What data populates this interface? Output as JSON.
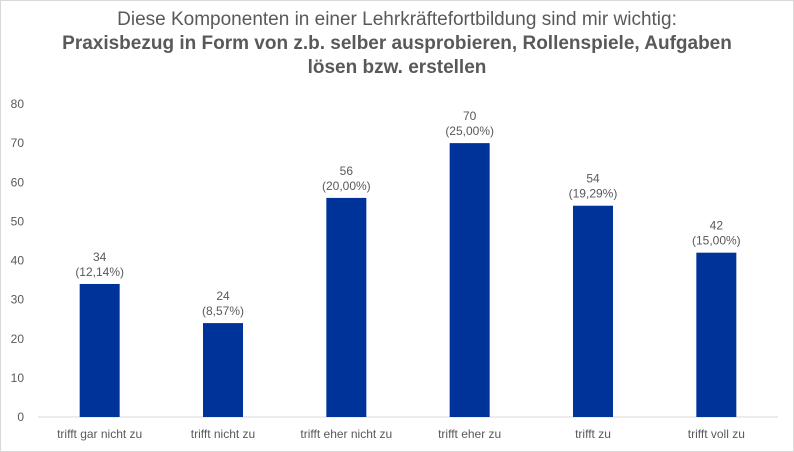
{
  "chart_data": {
    "type": "bar",
    "title_line1": "Diese Komponenten in einer Lehrkräftefortbildung sind mir wichtig:",
    "title_line2": "Praxisbezug in Form von z.b. selber ausprobieren, Rollenspiele, Aufgaben",
    "title_line3": "lösen bzw. erstellen",
    "categories": [
      "trifft gar nicht zu",
      "trifft nicht zu",
      "trifft eher nicht zu",
      "trifft eher zu",
      "trifft zu",
      "trifft voll zu"
    ],
    "values": [
      34,
      24,
      56,
      70,
      54,
      42
    ],
    "percent_labels": [
      "(12,14%)",
      "(8,57%)",
      "(20,00%)",
      "(25,00%)",
      "(19,29%)",
      "(15,00%)"
    ],
    "ylim": [
      0,
      80
    ],
    "yticks": [
      0,
      10,
      20,
      30,
      40,
      50,
      60,
      70,
      80
    ],
    "grid": false,
    "legend": "none",
    "colors": {
      "bar": "#003399",
      "text": "#595959",
      "axis": "#d9d9d9"
    }
  }
}
